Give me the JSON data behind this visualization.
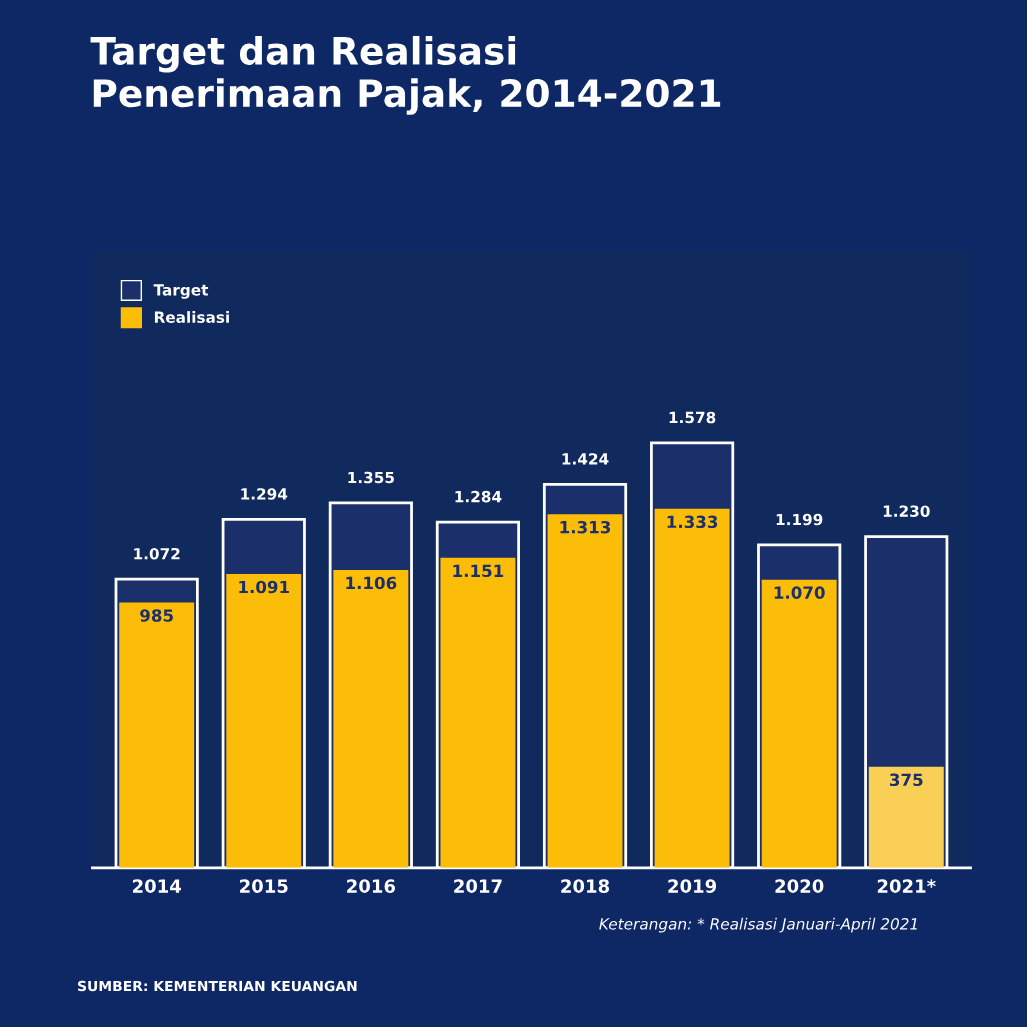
{
  "chart_data": {
    "type": "bar",
    "title": "Target dan Realisasi\nPenerimaan Pajak, 2014-2021",
    "categories": [
      "2014",
      "2015",
      "2016",
      "2017",
      "2018",
      "2019",
      "2020",
      "2021*"
    ],
    "series": [
      {
        "name": "Target",
        "color": "#1b2f6b",
        "values": [
          1072,
          1294,
          1355,
          1284,
          1424,
          1578,
          1199,
          1230
        ],
        "value_labels": [
          "1.072",
          "1.294",
          "1.355",
          "1.284",
          "1.424",
          "1.578",
          "1.199",
          "1.230"
        ]
      },
      {
        "name": "Realisasi",
        "color": "#fbbd08",
        "colors": [
          "#fbbd08",
          "#fbbd08",
          "#fbbd08",
          "#fbbd08",
          "#fbbd08",
          "#fbbd08",
          "#fbbd08",
          "#f9cf55"
        ],
        "values": [
          985,
          1091,
          1106,
          1151,
          1313,
          1333,
          1070,
          375
        ],
        "value_labels": [
          "985",
          "1.091",
          "1.106",
          "1.151",
          "1.313",
          "1.333",
          "1.070",
          "375"
        ]
      }
    ],
    "legend": "top left",
    "grid": false,
    "annotations": [
      "Keterangan: * Realisasi Januari-April 2021",
      "SUMBER: KEMENTERIAN KEUANGAN"
    ]
  }
}
